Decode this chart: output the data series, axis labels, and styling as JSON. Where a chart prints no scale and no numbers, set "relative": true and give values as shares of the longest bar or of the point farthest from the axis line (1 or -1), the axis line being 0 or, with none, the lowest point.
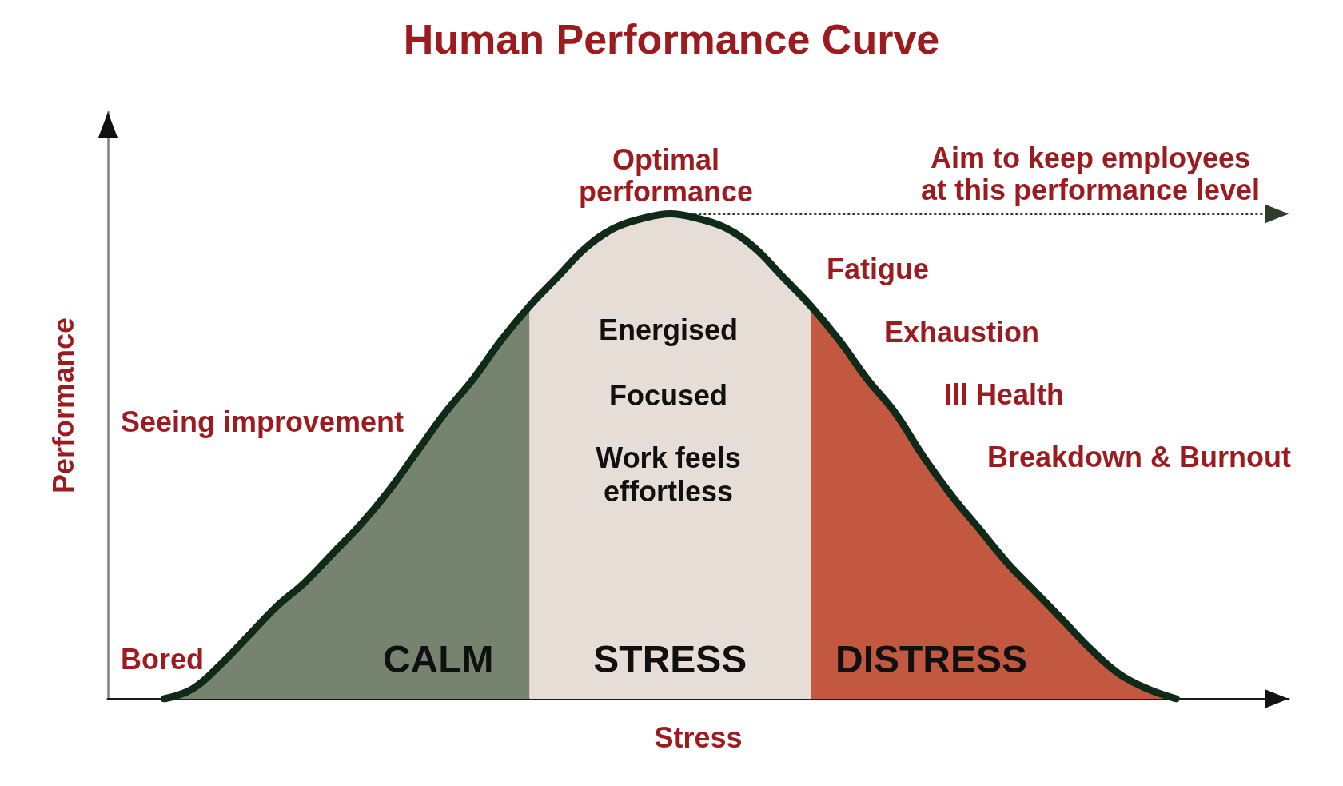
{
  "chart_data": {
    "type": "area",
    "title": "Human Performance Curve",
    "xlabel": "Stress",
    "ylabel": "Performance",
    "relative": true,
    "marker": "none",
    "categories": [
      null,
      null,
      null,
      null,
      null,
      null,
      null,
      null,
      null,
      null,
      null,
      null,
      null,
      null,
      null,
      null,
      null,
      null,
      null,
      null,
      null,
      null,
      null,
      null,
      null,
      null,
      null,
      null,
      null,
      null,
      null,
      null,
      null,
      null,
      null,
      null,
      null,
      null,
      null,
      null,
      null,
      null,
      null
    ],
    "series": [
      {
        "type": "line",
        "color": "#0f2a18",
        "values": [
          null,
          null,
          0,
          0.02,
          0.07,
          0.13,
          0.19,
          0.24,
          0.3,
          0.36,
          0.43,
          0.51,
          0.59,
          0.66,
          0.74,
          0.81,
          0.87,
          0.93,
          0.97,
          0.99,
          1,
          0.99,
          0.97,
          0.93,
          0.87,
          0.81,
          0.74,
          0.66,
          0.59,
          0.5,
          0.42,
          0.35,
          0.28,
          0.22,
          0.16,
          0.1,
          0.05,
          0.02,
          0,
          null,
          null,
          null,
          null
        ]
      },
      {
        "name": "CALM",
        "color": "#76846f",
        "values": [
          null,
          null,
          0,
          0.02,
          0.07,
          0.13,
          0.19,
          0.24,
          0.3,
          0.36,
          0.43,
          0.51,
          0.59,
          0.66,
          0.74,
          0.81,
          null,
          null,
          null,
          null,
          null,
          null,
          null,
          null,
          null,
          null,
          null,
          null,
          null,
          null,
          null,
          null,
          null,
          null,
          null,
          null,
          null,
          null,
          null,
          null,
          null,
          null,
          null
        ]
      },
      {
        "name": "STRESS",
        "color": "#e6ddd6",
        "values": [
          null,
          null,
          null,
          null,
          null,
          null,
          null,
          null,
          null,
          null,
          null,
          null,
          null,
          null,
          null,
          0.81,
          0.87,
          0.93,
          0.97,
          0.99,
          1,
          0.99,
          0.97,
          0.93,
          0.87,
          0.81,
          null,
          null,
          null,
          null,
          null,
          null,
          null,
          null,
          null,
          null,
          null,
          null,
          null,
          null,
          null,
          null,
          null
        ]
      },
      {
        "name": "DISTRESS",
        "color": "#c2583f",
        "values": [
          null,
          null,
          null,
          null,
          null,
          null,
          null,
          null,
          null,
          null,
          null,
          null,
          null,
          null,
          null,
          null,
          null,
          null,
          null,
          null,
          null,
          null,
          null,
          null,
          null,
          0.81,
          0.74,
          0.66,
          0.59,
          0.5,
          0.42,
          0.35,
          0.28,
          0.22,
          0.16,
          0.1,
          0.05,
          0.02,
          0,
          null,
          null,
          null,
          null
        ]
      }
    ],
    "ref_lines": [
      {
        "axis": "y",
        "value": 1,
        "label": "Aim to keep employees\nat this performance level",
        "line_style": "dotted",
        "color": "#2c3d2c"
      }
    ],
    "annotations": [
      "Optimal\nperformance",
      "Fatigue",
      "Exhaustion",
      "Ill Health",
      "Breakdown & Burnout",
      "Seeing improvement",
      "Bored",
      "Energised",
      "Focused",
      "Work feels\neffortless"
    ]
  }
}
